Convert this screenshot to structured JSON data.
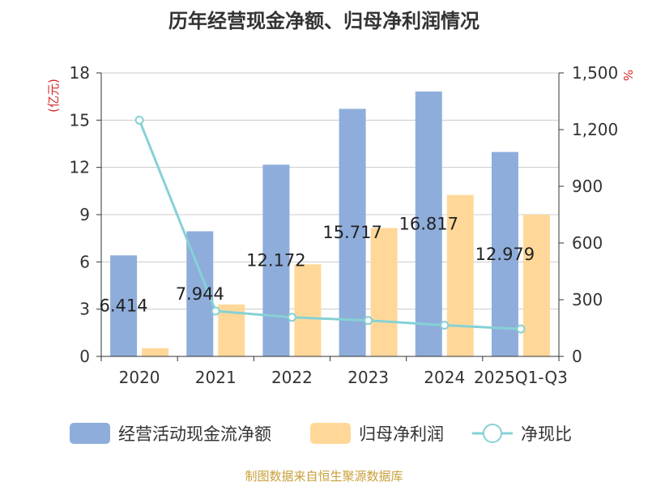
{
  "title": "历年经营现金净额、归母净利润情况",
  "source": "制图数据来自恒生聚源数据库",
  "chart_data": {
    "type": "bar",
    "categories": [
      "2020",
      "2021",
      "2022",
      "2023",
      "2024",
      "2025Q1-Q3"
    ],
    "series": [
      {
        "name": "经营活动现金流净额",
        "type": "bar",
        "axis": "left",
        "color": "#8eaddb",
        "values": [
          6.414,
          7.944,
          12.172,
          15.717,
          16.817,
          12.979
        ]
      },
      {
        "name": "归母净利润",
        "type": "bar",
        "axis": "left",
        "color": "#ffd899",
        "values": [
          0.52,
          3.3,
          5.85,
          8.15,
          10.25,
          9.0
        ]
      },
      {
        "name": "净现比",
        "type": "line",
        "axis": "right",
        "color": "#86d1d5",
        "values": [
          1250,
          240,
          207,
          190,
          165,
          145
        ]
      }
    ],
    "data_labels": [
      "6.414",
      "7.944",
      "12.172",
      "15.717",
      "16.817",
      "12.979"
    ],
    "left_axis": {
      "label": "(亿元)",
      "min": 0,
      "max": 18,
      "ticks": [
        "0",
        "3",
        "6",
        "9",
        "12",
        "15",
        "18"
      ]
    },
    "right_axis": {
      "label": "%",
      "min": 0,
      "max": 1500,
      "ticks": [
        "0",
        "300",
        "600",
        "900",
        "1,200",
        "1,500"
      ]
    },
    "grid": true,
    "legend_position": "bottom"
  }
}
